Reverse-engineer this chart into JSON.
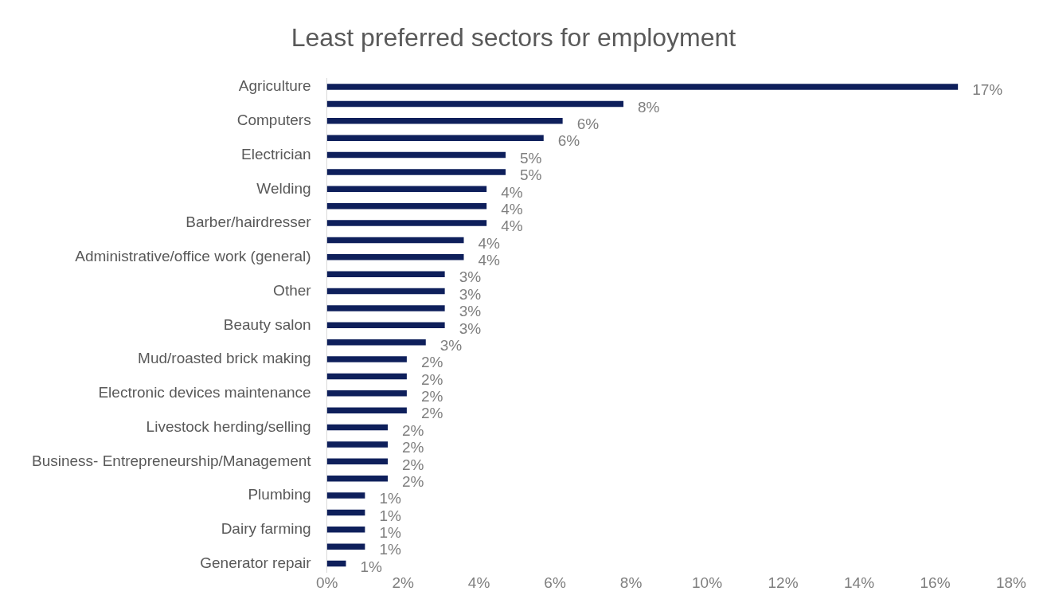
{
  "chart_data": {
    "type": "bar",
    "orientation": "horizontal",
    "title": "Least preferred sectors for employment",
    "categories": [
      "Agriculture",
      null,
      "Computers",
      null,
      "Electrician",
      null,
      "Welding",
      null,
      "Barber/hairdresser",
      null,
      "Administrative/office work (general)",
      null,
      "Other",
      null,
      "Beauty salon",
      null,
      "Mud/roasted brick making",
      null,
      "Electronic devices maintenance",
      null,
      "Livestock herding/selling",
      null,
      "Business- Entrepreneurship/Management",
      null,
      "Plumbing",
      null,
      "Dairy farming",
      null,
      "Generator repair"
    ],
    "values": [
      16.6,
      7.8,
      6.2,
      5.7,
      4.7,
      4.7,
      4.2,
      4.2,
      4.2,
      3.6,
      3.6,
      3.1,
      3.1,
      3.1,
      3.1,
      2.6,
      2.1,
      2.1,
      2.1,
      2.1,
      1.6,
      1.6,
      1.6,
      1.6,
      1.0,
      1.0,
      1.0,
      1.0,
      0.5
    ],
    "value_labels": [
      "17%",
      "8%",
      "6%",
      "6%",
      "5%",
      "5%",
      "4%",
      "4%",
      "4%",
      "4%",
      "4%",
      "3%",
      "3%",
      "3%",
      "3%",
      "3%",
      "2%",
      "2%",
      "2%",
      "2%",
      "2%",
      "2%",
      "2%",
      "2%",
      "1%",
      "1%",
      "1%",
      "1%",
      "1%"
    ],
    "color": "#0e1f5b",
    "xlim": [
      0,
      18
    ],
    "xticks": [
      {
        "value": 0,
        "label": "0%"
      },
      {
        "value": 2,
        "label": "2%"
      },
      {
        "value": 4,
        "label": "4%"
      },
      {
        "value": 6,
        "label": "6%"
      },
      {
        "value": 8,
        "label": "8%"
      },
      {
        "value": 10,
        "label": "10%"
      },
      {
        "value": 12,
        "label": "12%"
      },
      {
        "value": 14,
        "label": "14%"
      },
      {
        "value": 16,
        "label": "16%"
      },
      {
        "value": 18,
        "label": "18%"
      }
    ],
    "grid": false,
    "legend": false
  }
}
